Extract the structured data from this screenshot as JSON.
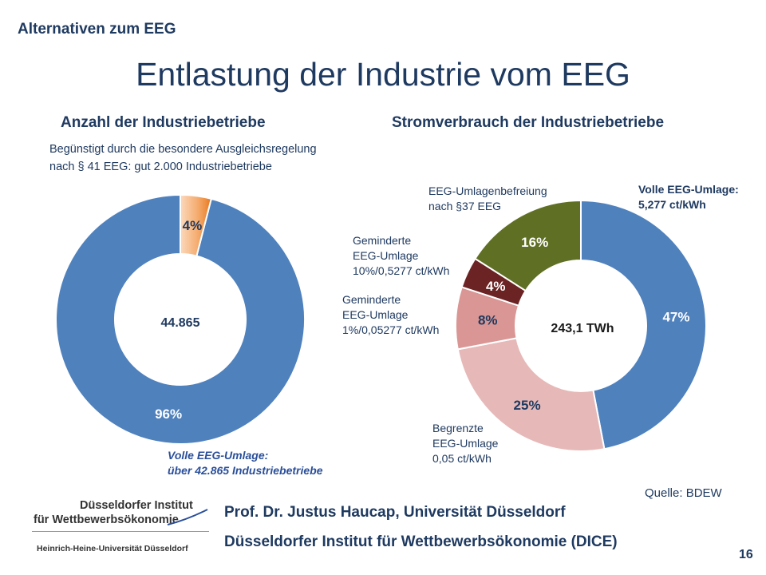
{
  "header": {
    "kicker": "Alternativen zum EEG",
    "title": "Entlastung der Industrie vom EEG"
  },
  "chart_data": [
    {
      "type": "pie",
      "title": "Anzahl der Industriebetriebe",
      "donut_center_label": "44.865",
      "slices": [
        {
          "label": "Volle EEG-Umlage",
          "value": 96,
          "value_label": "96%",
          "color": "#4f81bd"
        },
        {
          "label": "Begünstigt durch die besondere Ausgleichsregelung",
          "value": 4,
          "value_label": "4%",
          "color": "#f0a060"
        }
      ]
    },
    {
      "type": "pie",
      "title": "Stromverbrauch der Industriebetriebe",
      "donut_center_label": "243,1 TWh",
      "slices": [
        {
          "label": "Volle EEG-Umlage",
          "value": 47,
          "value_label": "47%",
          "color": "#4f81bd"
        },
        {
          "label": "Begrenzte EEG-Umlage",
          "value": 25,
          "value_label": "25%",
          "color": "#e6b9b8"
        },
        {
          "label": "Geminderte EEG-Umlage 1%",
          "value": 8,
          "value_label": "8%",
          "color": "#d99694"
        },
        {
          "label": "Geminderte EEG-Umlage 10%",
          "value": 4,
          "value_label": "4%",
          "color": "#6b2323"
        },
        {
          "label": "EEG-Umlagenbefreiung",
          "value": 16,
          "value_label": "16%",
          "color": "#5f6f24"
        }
      ]
    }
  ],
  "annotations": {
    "note_line1": "Begünstigt durch die besondere Ausgleichsregelung",
    "note_line2": "nach § 41 EEG: gut 2.000  Industriebetriebe",
    "left_bottom_line1": "Volle EEG-Umlage:",
    "left_bottom_line2": "über 42.865 Industriebetriebe",
    "befreiung_line1": "EEG-Umlagenbefreiung",
    "befreiung_line2": "nach §37 EEG",
    "volle_line1": "Volle EEG-Umlage:",
    "volle_line2": "5,277 ct/kWh",
    "gem10_line1": "Geminderte",
    "gem10_line2": "EEG-Umlage",
    "gem10_line3": "10%/0,5277 ct/kWh",
    "gem1_line1": "Geminderte",
    "gem1_line2": "EEG-Umlage",
    "gem1_line3": "1%/0,05277 ct/kWh",
    "begrenzt_line1": "Begrenzte",
    "begrenzt_line2": "EEG-Umlage",
    "begrenzt_line3": "0,05 ct/kWh"
  },
  "source": "Quelle: BDEW",
  "logo": {
    "line1": "Düsseldorfer Institut",
    "line2": "für Wettbewerbsökonomie",
    "line3": "Heinrich-Heine-Universität Düsseldorf",
    "accent_color": "#2a4f9a"
  },
  "footer": {
    "line1": "Prof. Dr. Justus Haucap, Universität Düsseldorf",
    "line2": "Düsseldorfer Institut für Wettbewerbsökonomie (DICE)",
    "page": "16"
  }
}
